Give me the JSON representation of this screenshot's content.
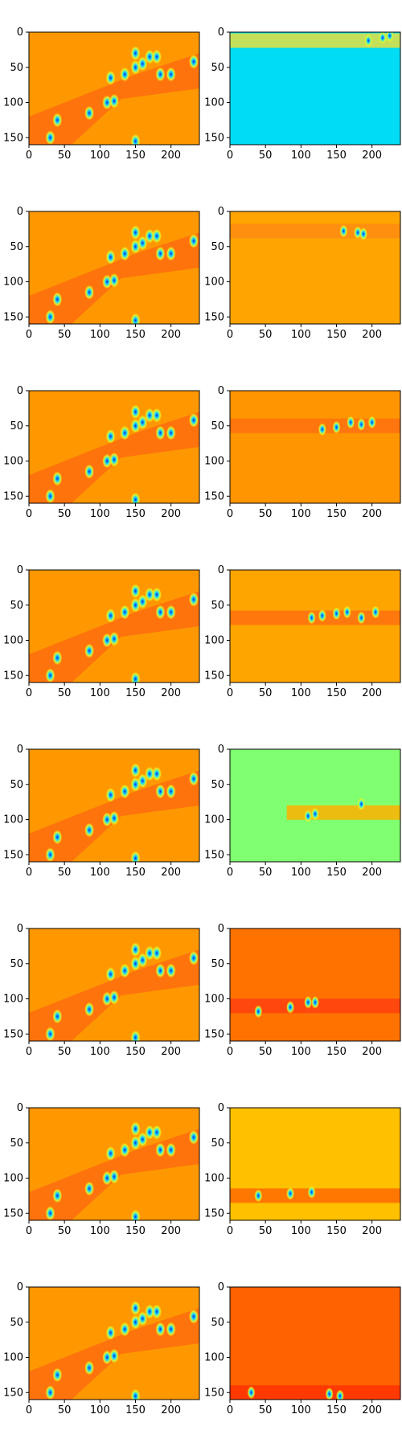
{
  "chart_data": {
    "type": "heatmap",
    "grid": {
      "rows": 8,
      "cols": 2
    },
    "colormap": "jet",
    "x_range": [
      0,
      240
    ],
    "y_range": [
      0,
      160
    ],
    "y_inverted": true,
    "xticks": [
      0,
      50,
      100,
      150,
      200
    ],
    "yticks": [
      0,
      50,
      100,
      150
    ],
    "left_column": {
      "background": "#ff9800",
      "diagonal_band_color": "#ff6a10",
      "blobs": [
        {
          "x": 135,
          "y": 60
        },
        {
          "x": 150,
          "y": 50
        },
        {
          "x": 160,
          "y": 45
        },
        {
          "x": 170,
          "y": 35
        },
        {
          "x": 180,
          "y": 35
        },
        {
          "x": 185,
          "y": 60
        },
        {
          "x": 200,
          "y": 60
        },
        {
          "x": 150,
          "y": 30
        },
        {
          "x": 115,
          "y": 65
        },
        {
          "x": 110,
          "y": 100
        },
        {
          "x": 120,
          "y": 98
        },
        {
          "x": 85,
          "y": 115
        },
        {
          "x": 40,
          "y": 125
        },
        {
          "x": 30,
          "y": 150
        },
        {
          "x": 150,
          "y": 155
        },
        {
          "x": 232,
          "y": 42
        }
      ]
    },
    "right_column": [
      {
        "background": "#00dcf4",
        "band_y": 12,
        "band_x": [
          0,
          240
        ],
        "band_color": "#e6e040",
        "blobs": [
          {
            "x": 215,
            "y": 8
          },
          {
            "x": 195,
            "y": 12
          },
          {
            "x": 225,
            "y": 5
          }
        ]
      },
      {
        "background": "#ffa400",
        "band_y": 28,
        "band_x": [
          0,
          240
        ],
        "band_color": "#ff8c10",
        "blobs": [
          {
            "x": 160,
            "y": 28
          },
          {
            "x": 180,
            "y": 30
          },
          {
            "x": 188,
            "y": 32
          }
        ]
      },
      {
        "background": "#ff9500",
        "band_y": 50,
        "band_x": [
          0,
          240
        ],
        "band_color": "#ff7010",
        "blobs": [
          {
            "x": 130,
            "y": 55
          },
          {
            "x": 150,
            "y": 52
          },
          {
            "x": 170,
            "y": 45
          },
          {
            "x": 185,
            "y": 48
          },
          {
            "x": 200,
            "y": 45
          }
        ]
      },
      {
        "background": "#ffa500",
        "band_y": 68,
        "band_x": [
          0,
          240
        ],
        "band_color": "#ff7010",
        "blobs": [
          {
            "x": 115,
            "y": 68
          },
          {
            "x": 130,
            "y": 65
          },
          {
            "x": 150,
            "y": 62
          },
          {
            "x": 165,
            "y": 60
          },
          {
            "x": 185,
            "y": 68
          },
          {
            "x": 205,
            "y": 60
          }
        ]
      },
      {
        "background": "#80ff70",
        "band_y": 90,
        "band_x": [
          80,
          240
        ],
        "band_color": "#ffb000",
        "blobs": [
          {
            "x": 110,
            "y": 95
          },
          {
            "x": 120,
            "y": 92
          },
          {
            "x": 185,
            "y": 78
          }
        ]
      },
      {
        "background": "#ff7200",
        "band_y": 110,
        "band_x": [
          0,
          240
        ],
        "band_color": "#ff4010",
        "blobs": [
          {
            "x": 85,
            "y": 112
          },
          {
            "x": 110,
            "y": 105
          },
          {
            "x": 120,
            "y": 105
          },
          {
            "x": 40,
            "y": 118
          }
        ]
      },
      {
        "background": "#ffc000",
        "band_y": 125,
        "band_x": [
          0,
          240
        ],
        "band_color": "#ff6a00",
        "blobs": [
          {
            "x": 40,
            "y": 125
          },
          {
            "x": 85,
            "y": 122
          },
          {
            "x": 115,
            "y": 120
          }
        ]
      },
      {
        "background": "#ff6200",
        "band_y": 150,
        "band_x": [
          0,
          240
        ],
        "band_color": "#ff3300",
        "blobs": [
          {
            "x": 30,
            "y": 150
          },
          {
            "x": 140,
            "y": 152
          },
          {
            "x": 155,
            "y": 155
          }
        ]
      }
    ]
  }
}
